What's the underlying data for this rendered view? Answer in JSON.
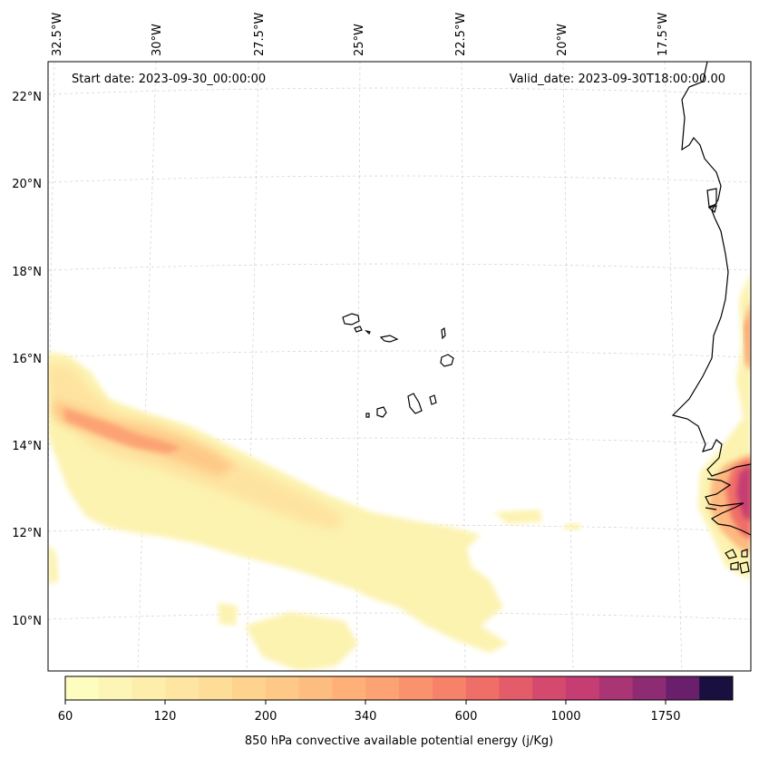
{
  "header": {
    "start_date": "Start date: 2023-09-30_00:00:00",
    "valid_date": "Valid_date: 2023-09-30T18:00:00.00"
  },
  "map": {
    "projection": "lambert-conformal",
    "lon_ticks": [
      "32.5°W",
      "30°W",
      "27.5°W",
      "25°W",
      "22.5°W",
      "20°W",
      "17.5°W"
    ],
    "lat_ticks": [
      "22°N",
      "20°N",
      "18°N",
      "16°N",
      "14°N",
      "12°N",
      "10°N"
    ],
    "grid": true
  },
  "colorbar": {
    "label": "850 hPa convective available potential energy (j/Kg)",
    "tick_labels": [
      "60",
      "120",
      "200",
      "340",
      "600",
      "1000",
      "1750"
    ],
    "colors": [
      "#fcfdbf",
      "#fdf5b5",
      "#fdeeab",
      "#fee6a2",
      "#fedd98",
      "#fed38e",
      "#fec987",
      "#febd80",
      "#feb078",
      "#fca273",
      "#fa936d",
      "#f7826a",
      "#f06e68",
      "#e45b6a",
      "#d5496f",
      "#c53d72",
      "#a93574",
      "#8d2b73",
      "#6a1f6d",
      "#1a1040"
    ]
  },
  "features": [
    {
      "name": "Cape Verde islands"
    },
    {
      "name": "West African coast (Mauritania, Senegal, Gambia, Guinea-Bissau)"
    }
  ]
}
